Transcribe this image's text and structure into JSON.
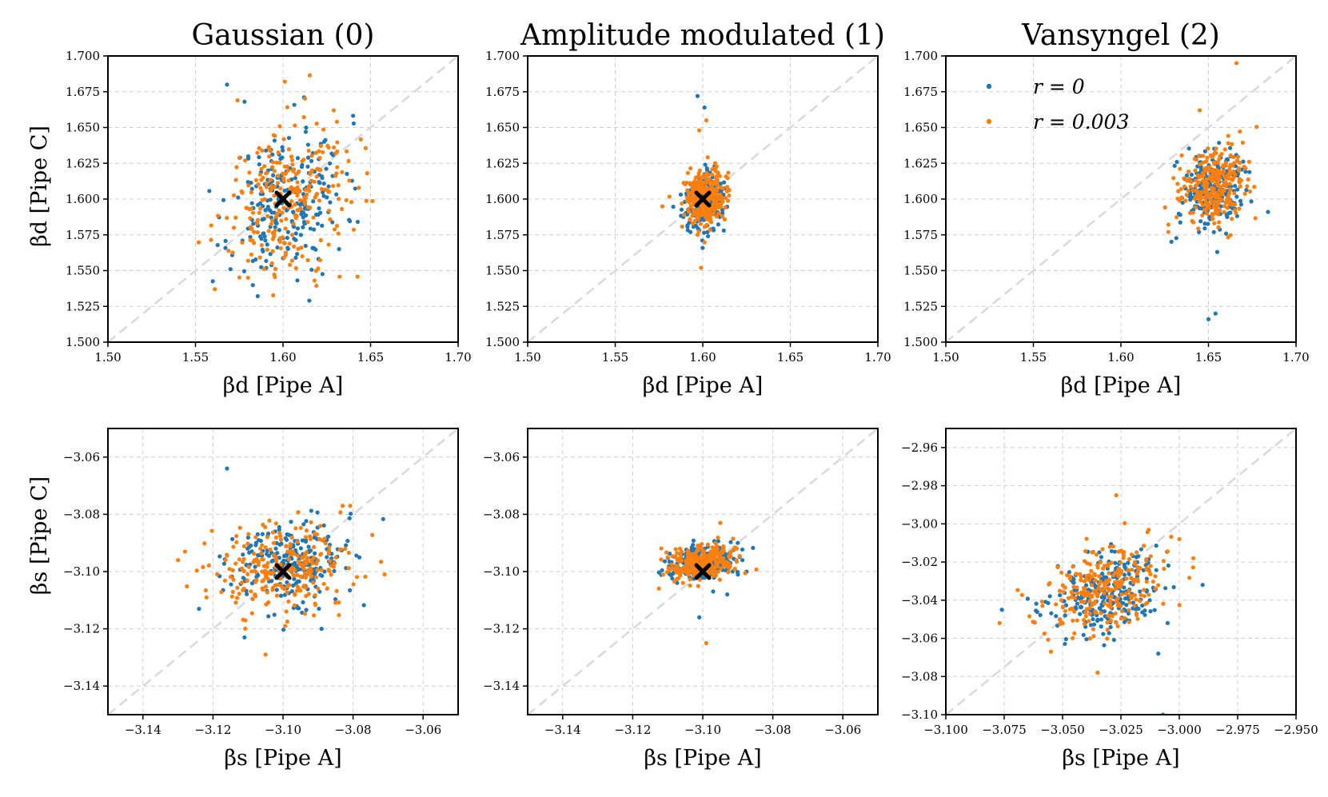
{
  "figure": {
    "row_labels": {
      "top_ylabel": "βd [Pipe C]",
      "bottom_ylabel": "βs [Pipe C]"
    },
    "legend": {
      "location": "upper-left of panel 3",
      "entries": [
        {
          "label": "r = 0",
          "color": "#1f77b4"
        },
        {
          "label": "r = 0.003",
          "color": "#ff7f0e"
        }
      ]
    }
  },
  "chart_data": [
    {
      "type": "scatter",
      "title": "Gaussian (0)",
      "xlabel": "βd [Pipe A]",
      "ylabel": "βd [Pipe C]",
      "xlim": [
        1.5,
        1.7
      ],
      "ylim": [
        1.5,
        1.7
      ],
      "xticks": [
        "1.50",
        "1.55",
        "1.60",
        "1.65",
        "1.70"
      ],
      "yticks": [
        "1.500",
        "1.525",
        "1.550",
        "1.575",
        "1.600",
        "1.625",
        "1.650",
        "1.675",
        "1.700"
      ],
      "grid": true,
      "identity_line": true,
      "truth": [
        1.6,
        1.6
      ],
      "series": [
        {
          "name": "r = 0",
          "color": "#1f77b4",
          "cloud": {
            "cx": 1.603,
            "cy": 1.598,
            "sx": 0.016,
            "sy": 0.025,
            "rho": 0.2,
            "n": 240,
            "seed": 11
          },
          "outliers": [
            [
              1.568,
              1.68
            ],
            [
              1.615,
              1.529
            ],
            [
              1.578,
              1.668
            ],
            [
              1.612,
              1.671
            ],
            [
              1.57,
              1.551
            ],
            [
              1.632,
              1.565
            ]
          ]
        },
        {
          "name": "r = 0.003",
          "color": "#ff7f0e",
          "cloud": {
            "cx": 1.6,
            "cy": 1.6,
            "sx": 0.018,
            "sy": 0.026,
            "rho": 0.2,
            "n": 260,
            "seed": 29
          },
          "outliers": [
            [
              1.601,
              1.682
            ],
            [
              1.561,
              1.537
            ],
            [
              1.648,
              1.618
            ],
            [
              1.574,
              1.669
            ],
            [
              1.618,
              1.543
            ],
            [
              1.58,
              1.545
            ]
          ]
        }
      ]
    },
    {
      "type": "scatter",
      "title": "Amplitude modulated (1)",
      "xlabel": "βd [Pipe A]",
      "ylabel": "βd [Pipe C]",
      "xlim": [
        1.5,
        1.7
      ],
      "ylim": [
        1.5,
        1.7
      ],
      "xticks": [
        "1.50",
        "1.55",
        "1.60",
        "1.65",
        "1.70"
      ],
      "yticks": [
        "1.500",
        "1.525",
        "1.550",
        "1.575",
        "1.600",
        "1.625",
        "1.650",
        "1.675",
        "1.700"
      ],
      "grid": true,
      "identity_line": true,
      "truth": [
        1.6,
        1.6
      ],
      "series": [
        {
          "name": "r = 0",
          "color": "#1f77b4",
          "cloud": {
            "cx": 1.601,
            "cy": 1.598,
            "sx": 0.006,
            "sy": 0.01,
            "rho": 0.1,
            "n": 240,
            "seed": 43
          },
          "outliers": [
            [
              1.597,
              1.672
            ],
            [
              1.601,
              1.664
            ],
            [
              1.603,
              1.574
            ],
            [
              1.612,
              1.578
            ]
          ]
        },
        {
          "name": "r = 0.003",
          "color": "#ff7f0e",
          "cloud": {
            "cx": 1.601,
            "cy": 1.6,
            "sx": 0.006,
            "sy": 0.01,
            "rho": 0.1,
            "n": 300,
            "seed": 57
          },
          "outliers": [
            [
              1.599,
              1.552
            ],
            [
              1.602,
              1.655
            ],
            [
              1.598,
              1.648
            ]
          ]
        }
      ]
    },
    {
      "type": "scatter",
      "title": "Vansyngel (2)",
      "xlabel": "βd [Pipe A]",
      "ylabel": "βd [Pipe C]",
      "xlim": [
        1.5,
        1.7
      ],
      "ylim": [
        1.5,
        1.7
      ],
      "xticks": [
        "1.50",
        "1.55",
        "1.60",
        "1.65",
        "1.70"
      ],
      "yticks": [
        "1.500",
        "1.525",
        "1.550",
        "1.575",
        "1.600",
        "1.625",
        "1.650",
        "1.675",
        "1.700"
      ],
      "grid": true,
      "identity_line": true,
      "series": [
        {
          "name": "r = 0",
          "color": "#1f77b4",
          "cloud": {
            "cx": 1.653,
            "cy": 1.607,
            "sx": 0.01,
            "sy": 0.014,
            "rho": 0.2,
            "n": 240,
            "seed": 71
          },
          "outliers": [
            [
              1.65,
              1.516
            ],
            [
              1.654,
              1.52
            ],
            [
              1.655,
              1.563
            ],
            [
              1.684,
              1.591
            ]
          ]
        },
        {
          "name": "r = 0.003",
          "color": "#ff7f0e",
          "cloud": {
            "cx": 1.653,
            "cy": 1.609,
            "sx": 0.01,
            "sy": 0.014,
            "rho": 0.2,
            "n": 260,
            "seed": 83
          },
          "outliers": [
            [
              1.666,
              1.695
            ],
            [
              1.645,
              1.662
            ]
          ]
        }
      ]
    },
    {
      "type": "scatter",
      "title": "",
      "xlabel": "βs [Pipe A]",
      "ylabel": "βs [Pipe C]",
      "xlim": [
        -3.15,
        -3.05
      ],
      "ylim": [
        -3.15,
        -3.05
      ],
      "xticks": [
        "−3.14",
        "−3.12",
        "−3.10",
        "−3.08",
        "−3.06"
      ],
      "yticks": [
        "−3.14",
        "−3.12",
        "−3.10",
        "−3.08",
        "−3.06"
      ],
      "grid": true,
      "identity_line": true,
      "truth": [
        -3.1,
        -3.1
      ],
      "series": [
        {
          "name": "r = 0",
          "color": "#1f77b4",
          "cloud": {
            "cx": -3.099,
            "cy": -3.097,
            "sx": 0.009,
            "sy": 0.008,
            "rho": 0.2,
            "n": 240,
            "seed": 97
          },
          "outliers": [
            [
              -3.116,
              -3.064
            ],
            [
              -3.111,
              -3.123
            ],
            [
              -3.089,
              -3.12
            ],
            [
              -3.124,
              -3.113
            ]
          ]
        },
        {
          "name": "r = 0.003",
          "color": "#ff7f0e",
          "cloud": {
            "cx": -3.1,
            "cy": -3.098,
            "sx": 0.01,
            "sy": 0.008,
            "rho": 0.2,
            "n": 260,
            "seed": 101
          },
          "outliers": [
            [
              -3.13,
              -3.096
            ],
            [
              -3.071,
              -3.101
            ],
            [
              -3.105,
              -3.129
            ],
            [
              -3.128,
              -3.093
            ]
          ]
        }
      ]
    },
    {
      "type": "scatter",
      "title": "",
      "xlabel": "βs [Pipe A]",
      "ylabel": "βs [Pipe C]",
      "xlim": [
        -3.15,
        -3.05
      ],
      "ylim": [
        -3.15,
        -3.05
      ],
      "xticks": [
        "−3.14",
        "−3.12",
        "−3.10",
        "−3.08",
        "−3.06"
      ],
      "yticks": [
        "−3.14",
        "−3.12",
        "−3.10",
        "−3.08",
        "−3.06"
      ],
      "grid": true,
      "identity_line": true,
      "truth": [
        -3.1,
        -3.1
      ],
      "series": [
        {
          "name": "r = 0",
          "color": "#1f77b4",
          "cloud": {
            "cx": -3.1,
            "cy": -3.097,
            "sx": 0.005,
            "sy": 0.003,
            "rho": 0.2,
            "n": 240,
            "seed": 113
          },
          "outliers": [
            [
              -3.101,
              -3.116
            ],
            [
              -3.093,
              -3.108
            ],
            [
              -3.09,
              -3.09
            ]
          ]
        },
        {
          "name": "r = 0.003",
          "color": "#ff7f0e",
          "cloud": {
            "cx": -3.1,
            "cy": -3.097,
            "sx": 0.005,
            "sy": 0.003,
            "rho": 0.2,
            "n": 300,
            "seed": 127
          },
          "outliers": [
            [
              -3.099,
              -3.125
            ],
            [
              -3.095,
              -3.083
            ]
          ]
        }
      ]
    },
    {
      "type": "scatter",
      "title": "",
      "xlabel": "βs [Pipe A]",
      "ylabel": "βs [Pipe C]",
      "xlim": [
        -3.1,
        -2.95
      ],
      "ylim": [
        -3.1,
        -2.95
      ],
      "xticks": [
        "−3.100",
        "−3.075",
        "−3.050",
        "−3.025",
        "−3.000",
        "−2.975",
        "−2.950"
      ],
      "yticks": [
        "−3.10",
        "−3.08",
        "−3.06",
        "−3.04",
        "−3.02",
        "−3.00",
        "−2.98",
        "−2.96"
      ],
      "grid": true,
      "identity_line": true,
      "series": [
        {
          "name": "r = 0",
          "color": "#1f77b4",
          "cloud": {
            "cx": -3.033,
            "cy": -3.037,
            "sx": 0.012,
            "sy": 0.011,
            "rho": 0.35,
            "n": 240,
            "seed": 131
          },
          "outliers": [
            [
              -3.007,
              -3.1
            ],
            [
              -3.009,
              -3.068
            ],
            [
              -3.076,
              -3.045
            ],
            [
              -2.99,
              -3.032
            ],
            [
              -3.005,
              -3.052
            ]
          ]
        },
        {
          "name": "r = 0.003",
          "color": "#ff7f0e",
          "cloud": {
            "cx": -3.033,
            "cy": -3.035,
            "sx": 0.013,
            "sy": 0.012,
            "rho": 0.35,
            "n": 260,
            "seed": 149
          },
          "outliers": [
            [
              -3.027,
              -2.985
            ],
            [
              -3.035,
              -3.078
            ],
            [
              -2.994,
              -3.018
            ],
            [
              -3.077,
              -3.052
            ],
            [
              -3.0,
              -3.008
            ]
          ]
        }
      ]
    }
  ]
}
